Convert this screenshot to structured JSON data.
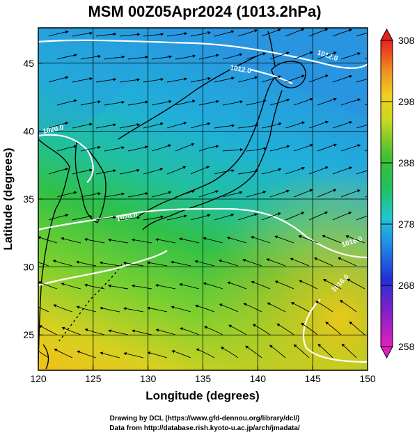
{
  "title": "MSM 00Z05Apr2024 (1013.2hPa)",
  "xlabel": "Longitude (degrees)",
  "ylabel": "Latitude  (degrees)",
  "x_ticks": [
    "120",
    "125",
    "130",
    "135",
    "140",
    "145",
    "150"
  ],
  "y_ticks": [
    "25",
    "30",
    "35",
    "40",
    "45"
  ],
  "colorbar_ticks": [
    "308",
    "298",
    "288",
    "278",
    "268",
    "258"
  ],
  "contour_labels": [
    "1012.0",
    "1016.0",
    "1020.0",
    "1020.0",
    "1016.0",
    "1012.0"
  ],
  "credits": {
    "line1": "Drawing by DCL (https://www.gfd-dennou.org/library/dcl/)",
    "line2": "Data from http://database.rish.kyoto-u.ac.jp/arch/jmadata/"
  },
  "chart_data": {
    "type": "heatmap",
    "title": "MSM 00Z05Apr2024 (1013.2hPa)",
    "xlabel": "Longitude (degrees)",
    "ylabel": "Latitude  (degrees)",
    "xlim": [
      120,
      150
    ],
    "ylim": [
      22.4,
      47.6
    ],
    "colorbar_range": [
      258,
      308
    ],
    "colors": {
      "warm": "#e8c020",
      "mid": "#40c840",
      "cool": "#20a8d8",
      "frame": "#000000",
      "contour": "#ffffff"
    }
  }
}
